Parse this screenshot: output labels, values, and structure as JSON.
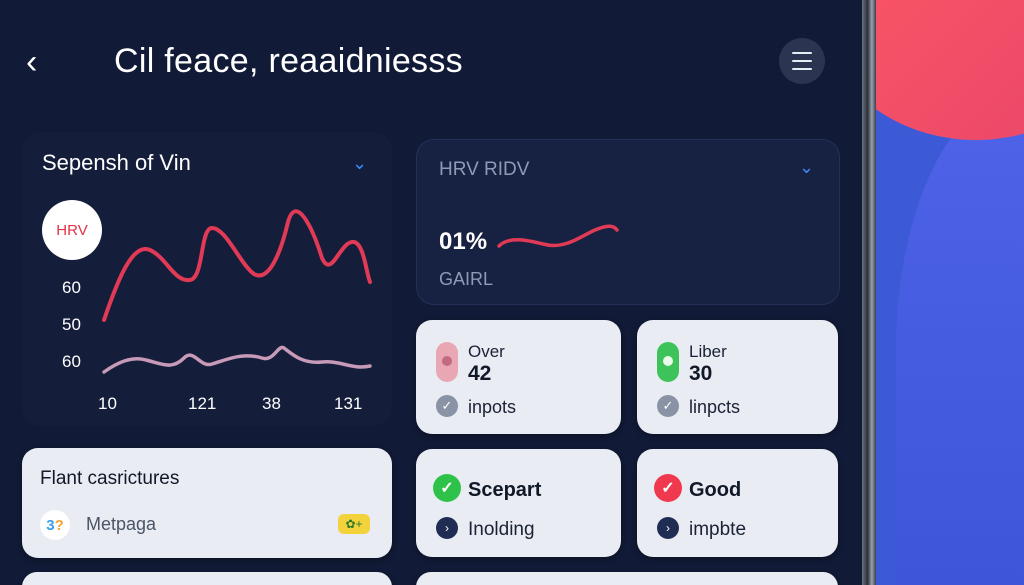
{
  "header": {
    "title": "Cil feace, reaaidniesss"
  },
  "card_hrv": {
    "title": "Sepensh of Vin",
    "badge": "HRV",
    "y_ticks": [
      "60",
      "50",
      "60"
    ],
    "x_ticks": [
      "10",
      "121",
      "38",
      "131"
    ]
  },
  "card_hrv_ridv": {
    "title": "HRV RIDV",
    "value": "01%",
    "label": "GAIRL"
  },
  "stats": [
    {
      "label": "Over",
      "value": "42",
      "foot": "inpots",
      "color": "#e8a7b3"
    },
    {
      "label": "Liber",
      "value": "30",
      "foot": "linpcts",
      "color": "#3ec35a"
    }
  ],
  "status": [
    {
      "label": "Scepart",
      "foot": "Inolding",
      "color": "#2fc24a"
    },
    {
      "label": "Good",
      "foot": "impbte",
      "color": "#f0394e"
    }
  ],
  "feature": {
    "title": "Flant casrictures",
    "subtitle": "Metpaga",
    "logo": {
      "a": "3",
      "b": "?"
    }
  },
  "colors": {
    "accent": "#3f8cff",
    "line_red": "#e03a57",
    "line_pink": "#c79ab8"
  }
}
